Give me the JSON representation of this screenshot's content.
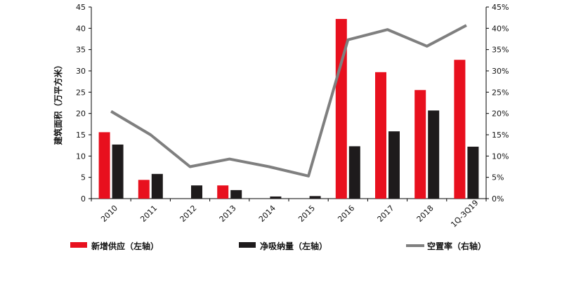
{
  "chart_data": {
    "type": "bar",
    "categories": [
      "2010",
      "2011",
      "2012",
      "2013",
      "2014",
      "2015",
      "2016",
      "2017",
      "2018",
      "1Q-3Q19"
    ],
    "series": [
      {
        "name": "新增供应（左轴）",
        "values": [
          15.6,
          4.4,
          0,
          3.1,
          0,
          0,
          42.2,
          29.7,
          25.5,
          32.6
        ],
        "color": "#e8101e",
        "axis": "left",
        "kind": "bar"
      },
      {
        "name": "净吸纳量（左轴）",
        "values": [
          12.7,
          5.8,
          3.1,
          2.0,
          0.5,
          0.6,
          12.3,
          15.8,
          20.7,
          12.2
        ],
        "color": "#1e1b1c",
        "axis": "left",
        "kind": "bar"
      },
      {
        "name": "空置率（右轴）",
        "values": [
          20.5,
          15.0,
          7.5,
          9.3,
          7.5,
          5.3,
          37.3,
          39.7,
          35.8,
          40.7
        ],
        "color": "#7f7f7f",
        "axis": "right",
        "kind": "line"
      }
    ],
    "ylabel": "建筑面积（万平方米）",
    "ylim": [
      0,
      45
    ],
    "yticks": [
      "0",
      "5",
      "10",
      "15",
      "20",
      "25",
      "30",
      "35",
      "40",
      "45"
    ],
    "y2lim": [
      0,
      45
    ],
    "y2ticks": [
      "0%",
      "5%",
      "10%",
      "15%",
      "20%",
      "25%",
      "30%",
      "35%",
      "40%",
      "45%"
    ],
    "legend": "bottom",
    "grid": false
  }
}
